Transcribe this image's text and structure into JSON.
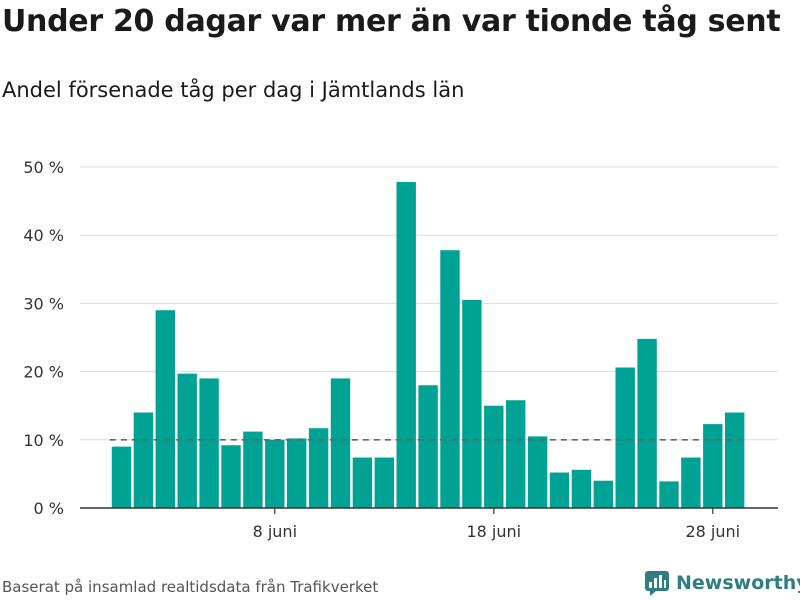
{
  "header": {
    "title": "Under 20 dagar var mer än var tionde tåg sent",
    "subtitle": "Andel försenade tåg per dag i Jämtlands län"
  },
  "footer": {
    "source": "Baserat på insamlad realtidsdata från Trafikverket",
    "brand": "Newsworthy"
  },
  "colors": {
    "bar": "#00a393",
    "grid": "#dddddd",
    "reference_line": "#666666",
    "brand": "#2f7d7e"
  },
  "chart_data": {
    "type": "bar",
    "x_dates": [
      "2020-06-01",
      "2020-06-02",
      "2020-06-03",
      "2020-06-04",
      "2020-06-05",
      "2020-06-06",
      "2020-06-07",
      "2020-06-08",
      "2020-06-09",
      "2020-06-10",
      "2020-06-11",
      "2020-06-12",
      "2020-06-13",
      "2020-06-14",
      "2020-06-15",
      "2020-06-16",
      "2020-06-17",
      "2020-06-18",
      "2020-06-19",
      "2020-06-20",
      "2020-06-21",
      "2020-06-22",
      "2020-06-23",
      "2020-06-24",
      "2020-06-25",
      "2020-06-26",
      "2020-06-27",
      "2020-06-28",
      "2020-06-29"
    ],
    "values": [
      9,
      14,
      29,
      19.7,
      19,
      9.2,
      11.2,
      10,
      10.2,
      11.7,
      19,
      7.4,
      7.4,
      47.8,
      18,
      37.8,
      30.5,
      15,
      15.8,
      10.5,
      5.2,
      5.6,
      4,
      20.6,
      24.8,
      3.9,
      7.4,
      12.3,
      14
    ],
    "reference_value": 10,
    "ylim": [
      0,
      50
    ],
    "y_ticks": [
      {
        "value": 0,
        "label": "0 %"
      },
      {
        "value": 10,
        "label": "10 %"
      },
      {
        "value": 20,
        "label": "20 %"
      },
      {
        "value": 30,
        "label": "30 %"
      },
      {
        "value": 40,
        "label": "40 %"
      },
      {
        "value": 50,
        "label": "50 %"
      }
    ],
    "x_ticks": [
      {
        "date": "2020-06-08",
        "label": "8 juni"
      },
      {
        "date": "2020-06-18",
        "label": "18 juni"
      },
      {
        "date": "2020-06-28",
        "label": "28 juni"
      }
    ],
    "grid": true,
    "legend": "none"
  }
}
